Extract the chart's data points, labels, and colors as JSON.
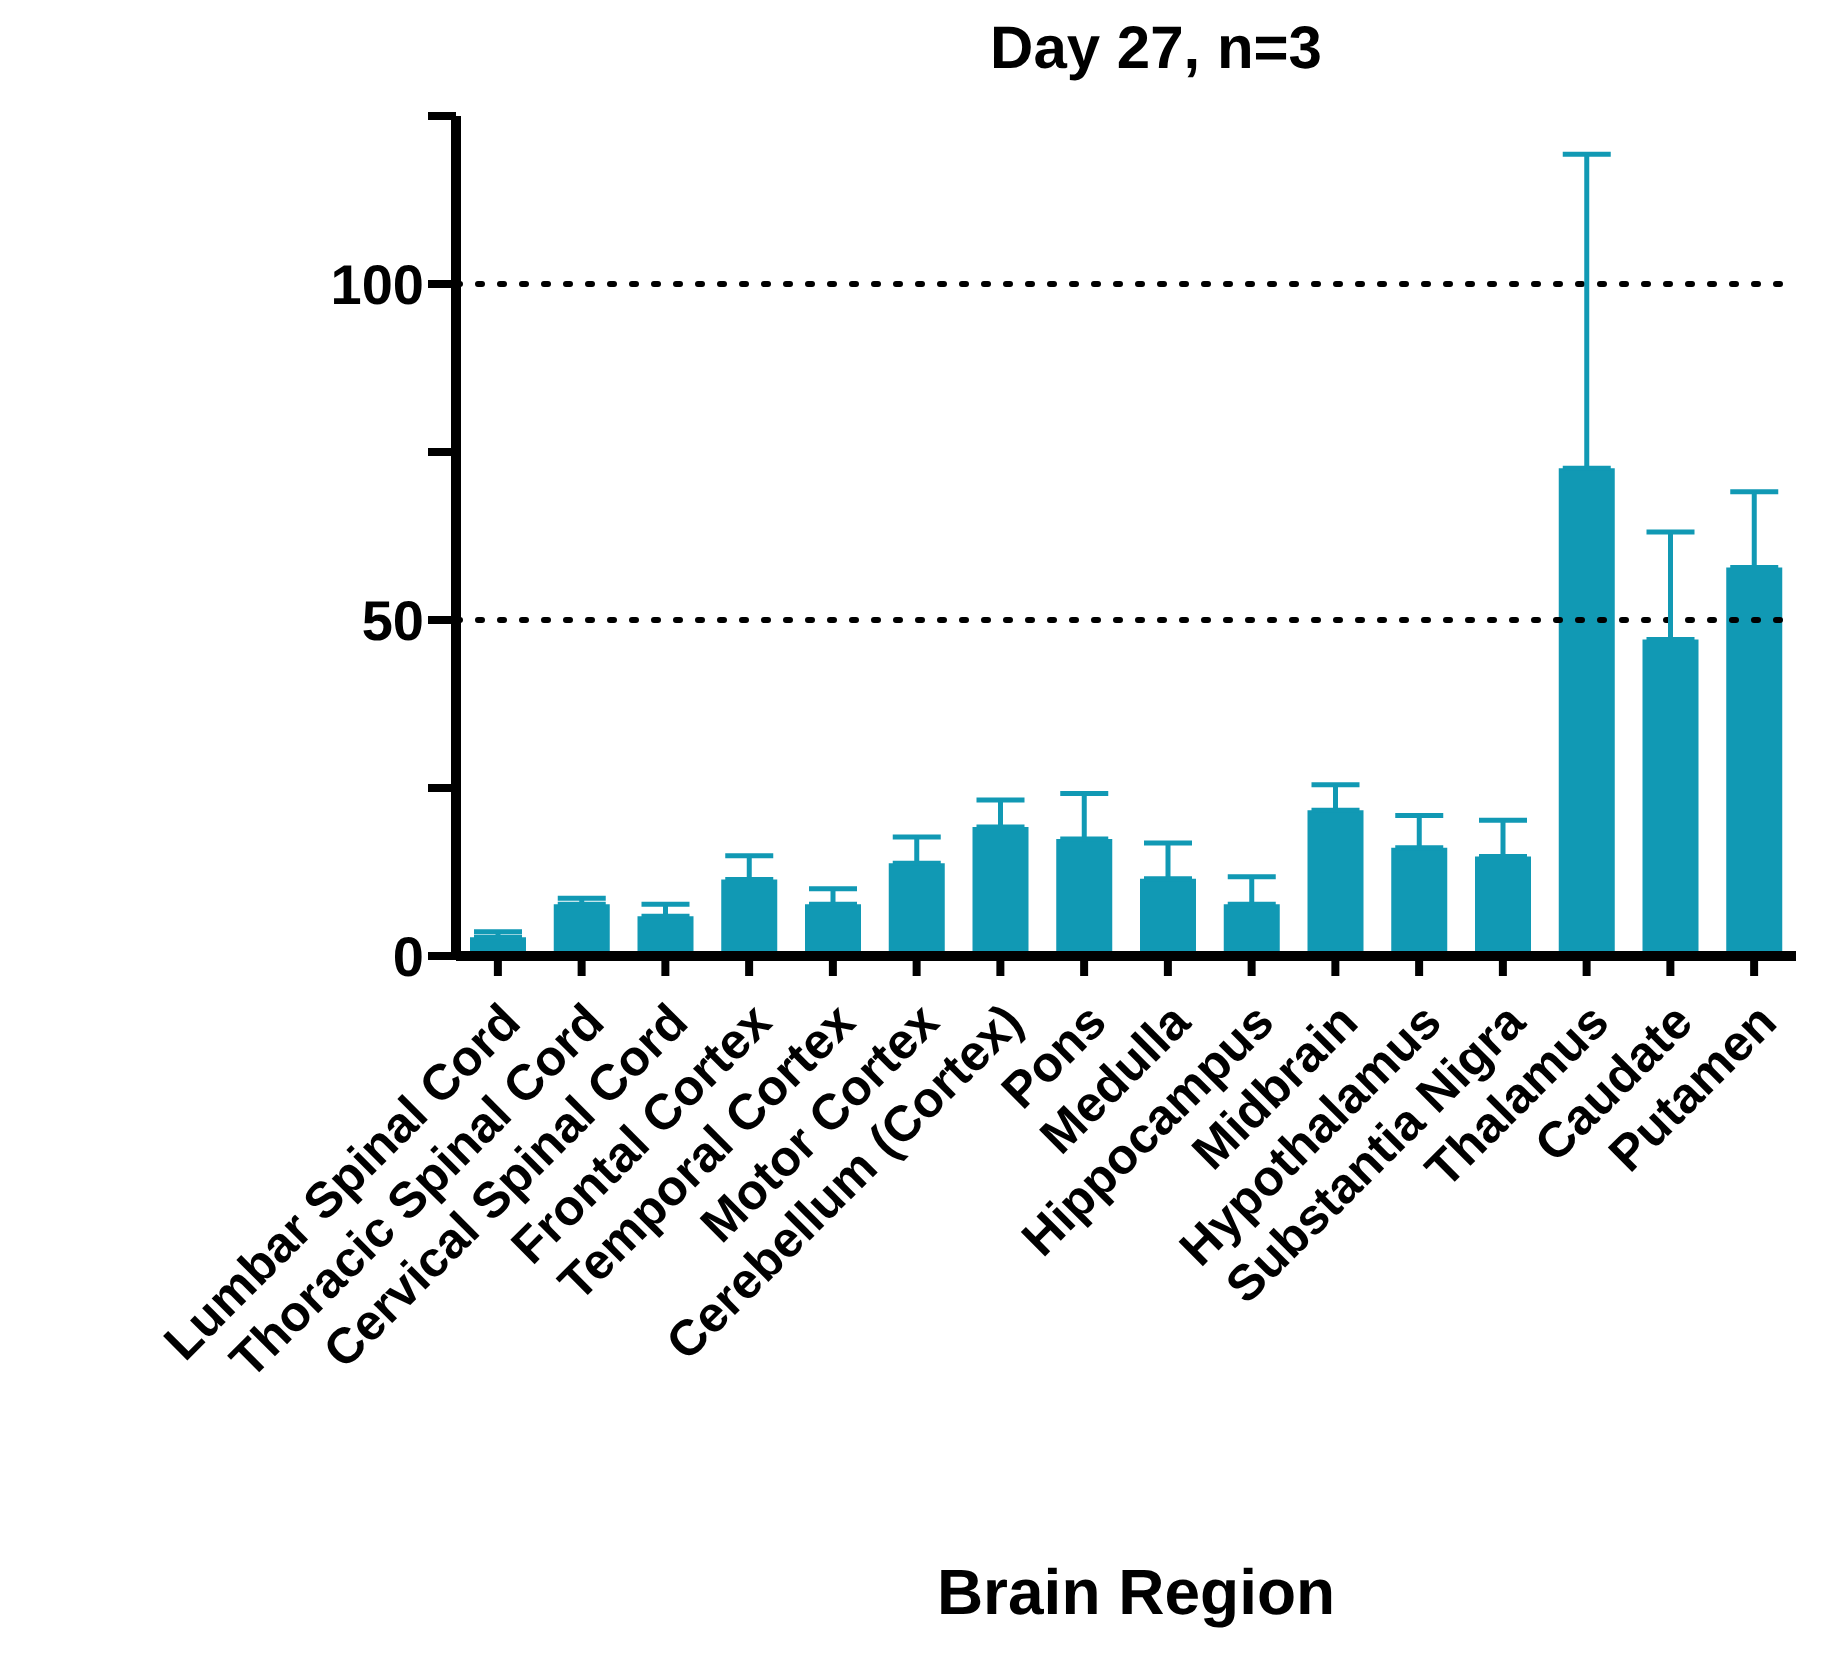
{
  "chart_data": {
    "type": "bar",
    "title": "Day 27, n=3",
    "xlabel": "Brain Region",
    "categories": [
      "Lumbar Spinal Cord",
      "Thoracic Spinal Cord",
      "Cervical Spinal Cord",
      "Frontal Cortex",
      "Temporal Cortex",
      "Motor Cortex",
      "Cerebellum (Cortex)",
      "Pons",
      "Medulla",
      "Hippocampus",
      "Midbrain",
      "Hypothalamus",
      "Substantia Nigra",
      "Thalamus",
      "Caudate",
      "Putamen"
    ],
    "values": [
      2.8,
      7.7,
      5.9,
      11.4,
      7.7,
      13.8,
      19.2,
      17.4,
      11.5,
      7.7,
      21.7,
      16.1,
      14.8,
      72.6,
      47.1,
      57.8
    ],
    "errors": [
      [
        2.8,
        3.6
      ],
      [
        7.7,
        8.6
      ],
      [
        5.9,
        7.7
      ],
      [
        11.4,
        14.9
      ],
      [
        7.7,
        10.0
      ],
      [
        13.8,
        17.7
      ],
      [
        19.2,
        23.2
      ],
      [
        17.4,
        24.2
      ],
      [
        11.5,
        16.8
      ],
      [
        7.7,
        11.8
      ],
      [
        21.7,
        25.5
      ],
      [
        16.1,
        20.9
      ],
      [
        14.8,
        20.2
      ],
      [
        72.6,
        119.3
      ],
      [
        47.1,
        63.1
      ],
      [
        57.8,
        69.1
      ]
    ],
    "color": "#1199b4",
    "ylim": [
      0,
      125
    ],
    "yticks": [
      0,
      {
        "value": 25,
        "label": null
      },
      50,
      {
        "value": 75,
        "label": null
      },
      100,
      {
        "value": 125,
        "label": null
      }
    ],
    "ref_lines": [
      {
        "axis": "y",
        "value": 50,
        "line_style": "dotted"
      },
      {
        "axis": "y",
        "value": 100,
        "line_style": "dotted"
      }
    ],
    "grid": false,
    "legend": false
  }
}
